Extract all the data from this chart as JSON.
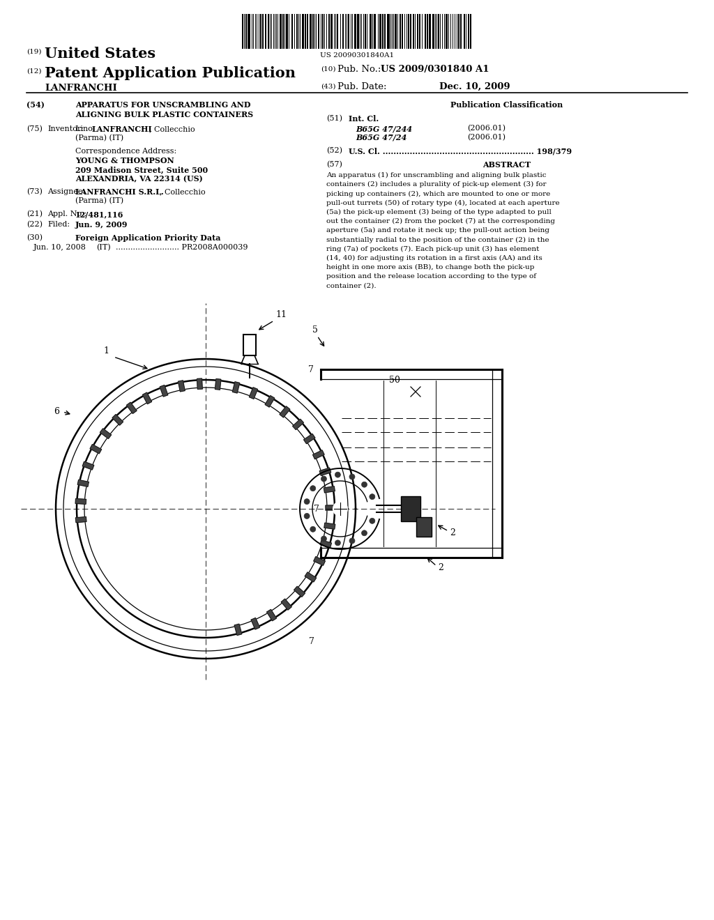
{
  "background_color": "#ffffff",
  "barcode_text": "US 20090301840A1",
  "header_19_text": "United States",
  "header_12_text": "Patent Application Publication",
  "pub_no_label": "Pub. No.:",
  "pub_no_value": "US 2009/0301840 A1",
  "pub_date_label": "Pub. Date:",
  "pub_date_value": "Dec. 10, 2009",
  "inventor_name": "LANFRANCHI",
  "section_54_line1": "APPARATUS FOR UNSCRAMBLING AND",
  "section_54_line2": "ALIGNING BULK PLASTIC CONTAINERS",
  "section_75_inventor_pre": "Lino ",
  "section_75_inventor_bold": "LANFRANCHI",
  "section_75_inventor_post": ", Collecchio",
  "section_75_inventor_line2": "(Parma) (IT)",
  "corr_label": "Correspondence Address:",
  "corr_name": "YOUNG & THOMPSON",
  "corr_addr1": "209 Madison Street, Suite 500",
  "corr_addr2": "ALEXANDRIA, VA 22314 (US)",
  "section_73_assignee_bold": "LANFRANCHI S.R.L.",
  "section_73_assignee_post": ", Collecchio",
  "section_73_assignee_line2": "(Parma) (IT)",
  "section_21_value": "12/481,116",
  "section_22_value": "Jun. 9, 2009",
  "section_30_title": "Foreign Application Priority Data",
  "section_30_data": "Jun. 10, 2008  (IT) .......................... PR2008A000039",
  "pub_class_title": "Publication Classification",
  "section_51_class1": "B65G 47/244",
  "section_51_year1": "(2006.01)",
  "section_51_class2": "B65G 47/24",
  "section_51_year2": "(2006.01)",
  "section_52_text": "U.S. Cl. ........................................................ 198/379",
  "abstract_lines": [
    "An apparatus (1) for unscrambling and aligning bulk plastic",
    "containers (2) includes a plurality of pick-up element (3) for",
    "picking up containers (2), which are mounted to one or more",
    "pull-out turrets (50) of rotary type (4), located at each aperture",
    "(5a) the pick-up element (3) being of the type adapted to pull",
    "out the container (2) from the pocket (7) at the corresponding",
    "aperture (5a) and rotate it neck up; the pull-out action being",
    "substantially radial to the position of the container (2) in the",
    "ring (7a) of pockets (7). Each pick-up unit (3) has element",
    "(14, 40) for adjusting its rotation in a first axis (AA) and its",
    "height in one more axis (BB), to change both the pick-up",
    "position and the release location according to the type of",
    "container (2)."
  ]
}
